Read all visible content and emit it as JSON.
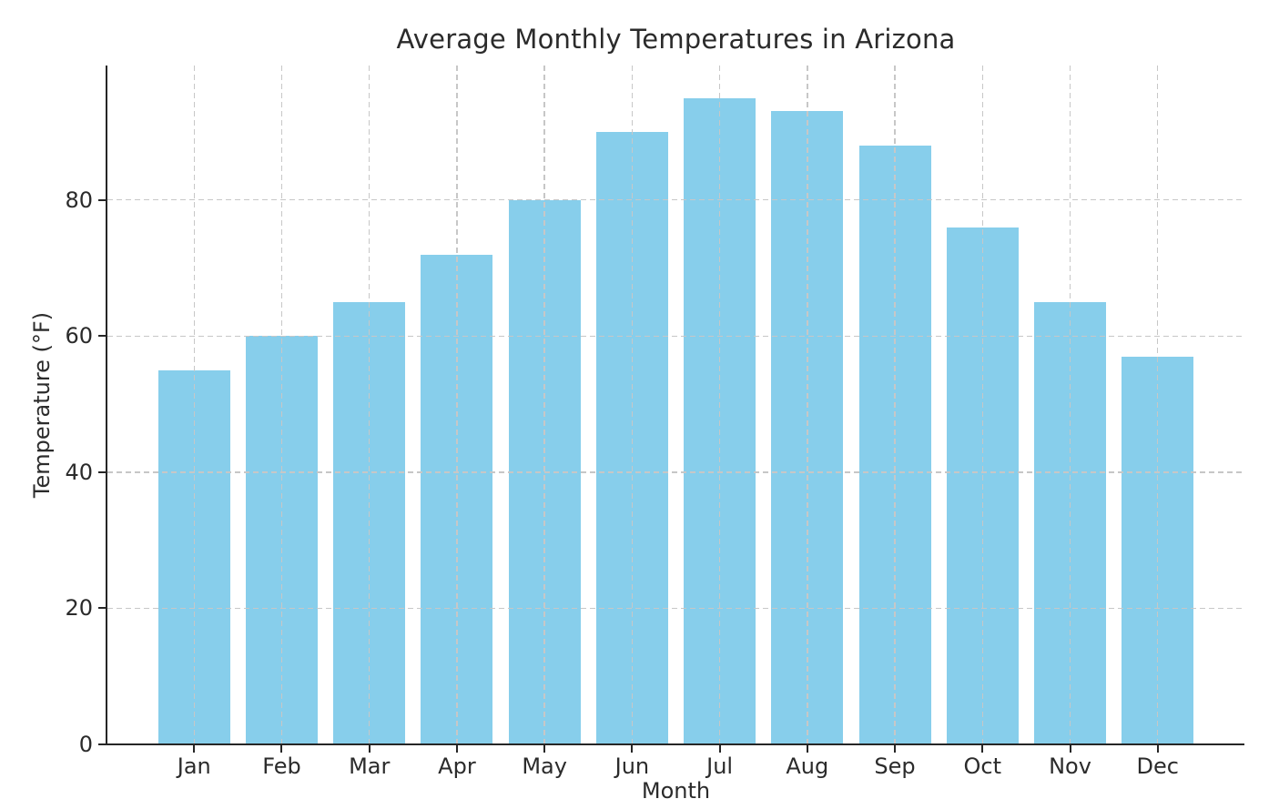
{
  "chart_data": {
    "type": "bar",
    "title": "Average Monthly Temperatures in Arizona",
    "xlabel": "Month",
    "ylabel": "Temperature (°F)",
    "categories": [
      "Jan",
      "Feb",
      "Mar",
      "Apr",
      "May",
      "Jun",
      "Jul",
      "Aug",
      "Sep",
      "Oct",
      "Nov",
      "Dec"
    ],
    "values": [
      55,
      60,
      65,
      72,
      80,
      90,
      95,
      93,
      88,
      76,
      65,
      57
    ],
    "yticks": [
      0,
      20,
      40,
      60,
      80
    ],
    "ylim": [
      0,
      99.75
    ],
    "bar_color": "#87CEEB",
    "grid": true,
    "grid_color": "#c7c7c7",
    "grid_style": "dashed",
    "axis_color": "#262626",
    "text_color": "#2b2b2b",
    "background": "#ffffff",
    "legend": null
  }
}
